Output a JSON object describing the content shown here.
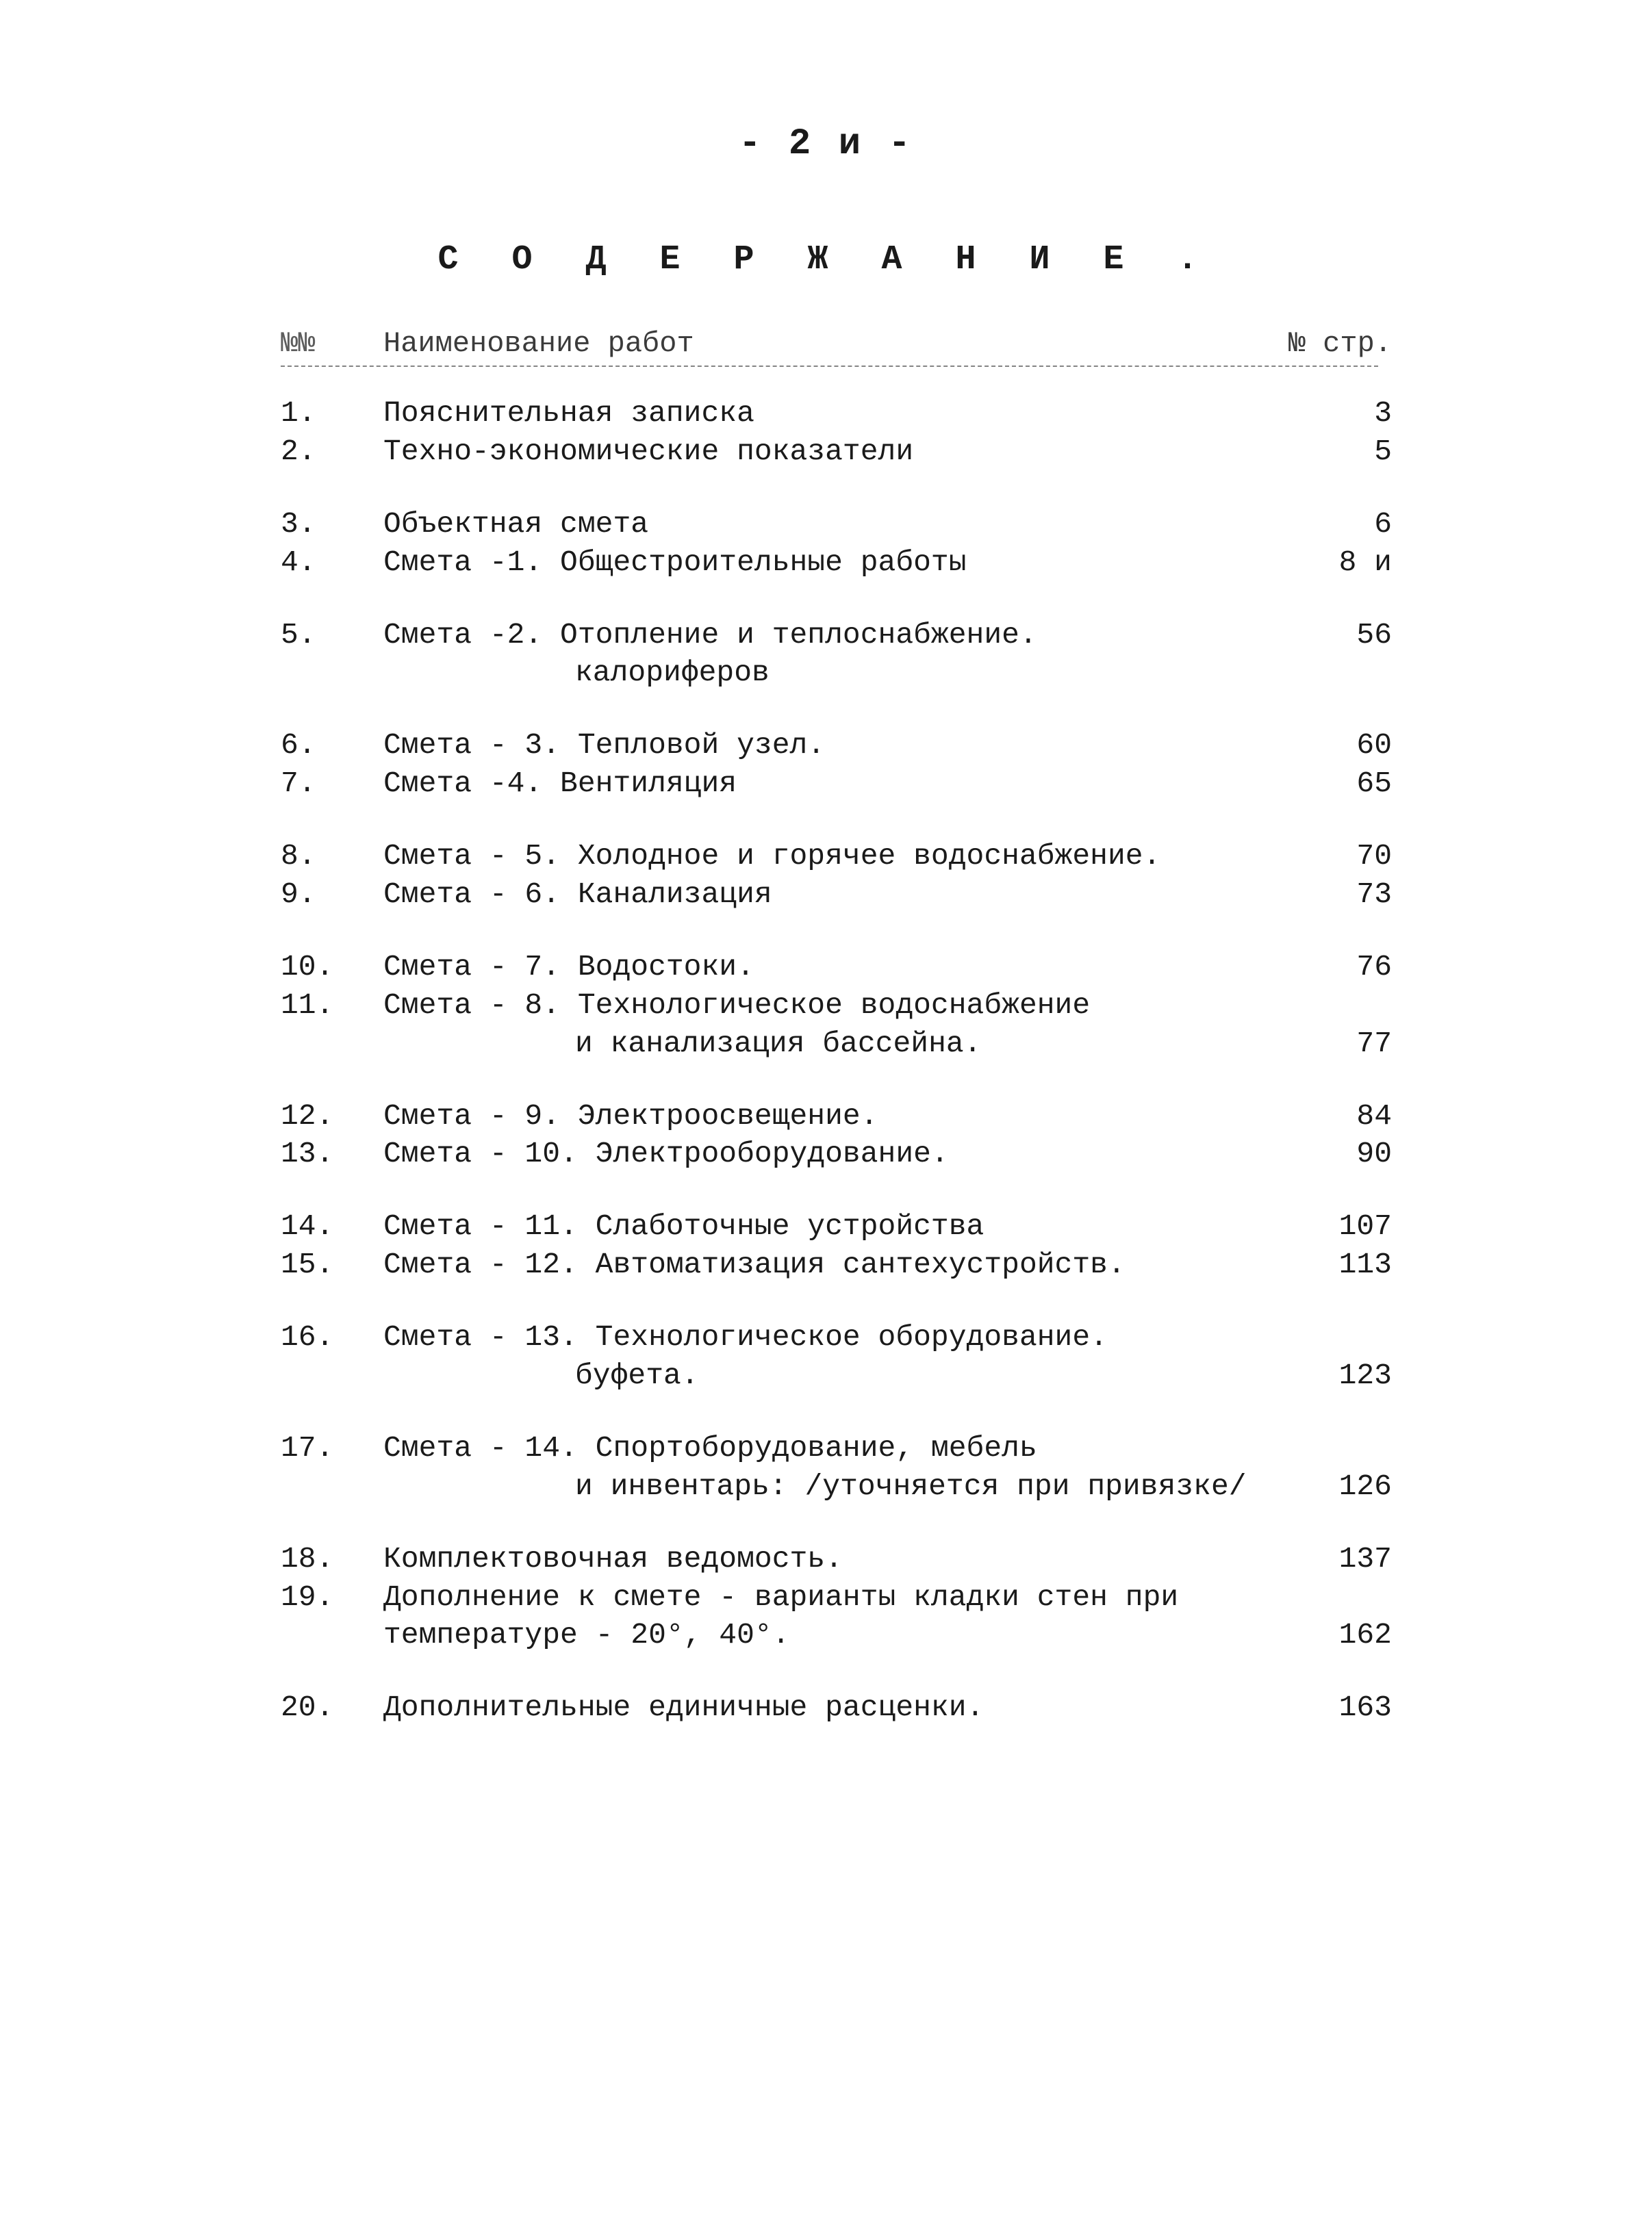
{
  "page_number": "- 2 и -",
  "scribble": "",
  "title": "С О Д Е Р Ж А Н И Е .",
  "header": {
    "num": "№№",
    "name": "Наименование работ",
    "page": "№ стр."
  },
  "groups": [
    {
      "rows": [
        {
          "num": "1.",
          "name": "Пояснительная записка",
          "page": "3"
        },
        {
          "num": "2.",
          "name": "Техно-экономические показатели",
          "page": "5"
        }
      ]
    },
    {
      "rows": [
        {
          "num": "3.",
          "name": "Объектная смета",
          "page": "6"
        },
        {
          "num": "4.",
          "name": "Смета -1. Общестроительные работы",
          "page": "8 и"
        }
      ]
    },
    {
      "rows": [
        {
          "num": "5.",
          "name": "Смета -2. Отопление и теплоснабжение.",
          "page": "56"
        },
        {
          "num": "",
          "name": "<span class=\"indent\">калориферов</span>",
          "page": ""
        }
      ]
    },
    {
      "rows": [
        {
          "num": "6.",
          "name": "Смета - 3. Тепловой узел.",
          "page": "60"
        },
        {
          "num": "7.",
          "name": "Смета -4. Вентиляция",
          "page": "65"
        }
      ]
    },
    {
      "rows": [
        {
          "num": "8.",
          "name": "Смета - 5. Холодное и горячее водоснабжение.",
          "page": "70"
        },
        {
          "num": "9.",
          "name": "Смета - 6. Канализация",
          "page": "73"
        }
      ]
    },
    {
      "rows": [
        {
          "num": "10.",
          "name": "Смета - 7. Водостоки.",
          "page": "76"
        },
        {
          "num": "11.",
          "name": "Смета - 8. Технологическое водоснабжение",
          "page": ""
        },
        {
          "num": "",
          "name": "<span class=\"indent\">и канализация бассейна.</span>",
          "page": "77"
        }
      ]
    },
    {
      "rows": [
        {
          "num": "12.",
          "name": "Смета - 9. Электроосвещение.",
          "page": "84"
        },
        {
          "num": "13.",
          "name": "Смета - 10. Электрооборудование.",
          "page": "90"
        }
      ]
    },
    {
      "rows": [
        {
          "num": "14.",
          "name": "Смета - 11. Слаботочные устройства",
          "page": "107"
        },
        {
          "num": "15.",
          "name": "Смета - 12. Автоматизация сантехустройств.",
          "page": "113"
        }
      ]
    },
    {
      "rows": [
        {
          "num": "16.",
          "name": "Смета - 13. Технологическое оборудование.",
          "page": ""
        },
        {
          "num": "",
          "name": "<span class=\"indent\">буфета.</span>",
          "page": "123"
        }
      ]
    },
    {
      "rows": [
        {
          "num": "17.",
          "name": "Смета - 14. Спортоборудование, мебель",
          "page": ""
        },
        {
          "num": "",
          "name": "<span class=\"indent\">и инвентарь: /уточняется при привязке/</span>",
          "page": "126"
        }
      ]
    },
    {
      "rows": [
        {
          "num": "18.",
          "name": "Комплектовочная ведомость.",
          "page": "137"
        },
        {
          "num": "19.",
          "name": "Дополнение к смете - варианты кладки стен при",
          "page": ""
        },
        {
          "num": "",
          "name": "температуре - 20°, 40°.",
          "page": "162"
        }
      ]
    },
    {
      "rows": [
        {
          "num": "20.",
          "name": "Дополнительные единичные расценки.",
          "page": "163"
        }
      ]
    }
  ]
}
